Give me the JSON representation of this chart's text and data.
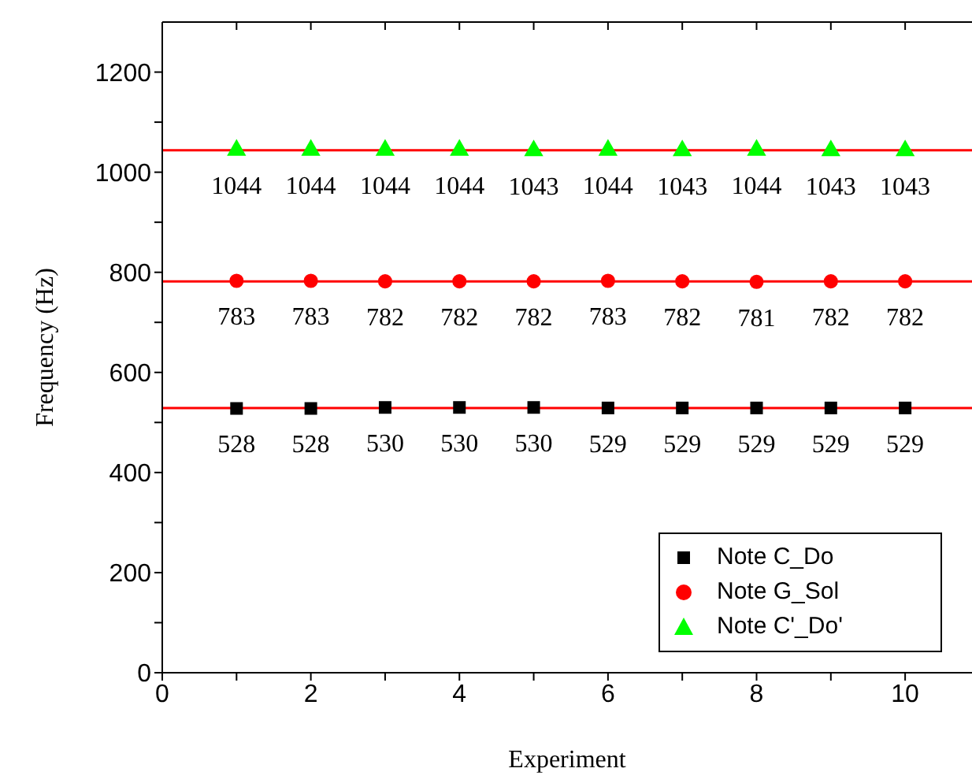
{
  "chart_data": {
    "type": "scatter",
    "xlabel": "Experiment",
    "ylabel": "Frequency (Hz)",
    "x": [
      1,
      2,
      3,
      4,
      5,
      6,
      7,
      8,
      9,
      10
    ],
    "series": [
      {
        "name": "Note C_Do",
        "color": "#000000",
        "marker": "square",
        "values": [
          528,
          528,
          530,
          530,
          530,
          529,
          529,
          529,
          529,
          529
        ],
        "value_labels": [
          "528",
          "528",
          "530",
          "530",
          "530",
          "529",
          "529",
          "529",
          "529",
          "529"
        ]
      },
      {
        "name": "Note G_Sol",
        "color": "#ff0000",
        "marker": "circle",
        "values": [
          783,
          783,
          782,
          782,
          782,
          783,
          782,
          781,
          782,
          782
        ],
        "value_labels": [
          "783",
          "783",
          "782",
          "782",
          "782",
          "783",
          "782",
          "781",
          "782",
          "782"
        ]
      },
      {
        "name": "Note C'_Do'",
        "color": "#00ff00",
        "marker": "triangle",
        "values": [
          1044,
          1044,
          1044,
          1044,
          1043,
          1044,
          1043,
          1044,
          1043,
          1043
        ],
        "value_labels": [
          "1044",
          "1044",
          "1044",
          "1044",
          "1043",
          "1044",
          "1043",
          "1044",
          "1043",
          "1043"
        ]
      }
    ],
    "ref_lines": [
      {
        "axis": "y",
        "value": 529,
        "color": "#ff0000"
      },
      {
        "axis": "y",
        "value": 782,
        "color": "#ff0000"
      },
      {
        "axis": "y",
        "value": 1044,
        "color": "#ff0000"
      }
    ],
    "xlim": [
      0,
      10.9
    ],
    "xticks": [
      0,
      {
        "value": 1,
        "label": null
      },
      2,
      {
        "value": 3,
        "label": null
      },
      4,
      {
        "value": 5,
        "label": null
      },
      6,
      {
        "value": 7,
        "label": null
      },
      8,
      {
        "value": 9,
        "label": null
      },
      10
    ],
    "ylim": [
      0,
      1300
    ],
    "yticks": [
      0,
      {
        "value": 100,
        "label": null
      },
      200,
      {
        "value": 300,
        "label": null
      },
      400,
      {
        "value": 500,
        "label": null
      },
      600,
      {
        "value": 700,
        "label": null
      },
      800,
      {
        "value": 900,
        "label": null
      },
      1000,
      {
        "value": 1100,
        "label": null
      },
      1200
    ],
    "legend": "bottom right"
  }
}
